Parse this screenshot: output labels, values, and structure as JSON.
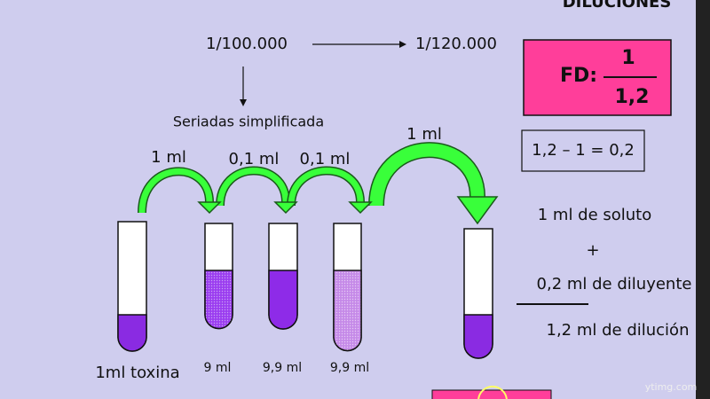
{
  "header": {
    "title": "DILUCIONES"
  },
  "flow": {
    "from": "1/100.000",
    "to": "1/120.000",
    "method": "Seriadas simplificada"
  },
  "fd": {
    "label": "FD:",
    "numerator": "1",
    "denominator": "1,2"
  },
  "transfers": [
    "1 ml",
    "0,1 ml",
    "0,1 ml",
    "1 ml"
  ],
  "tubes": [
    "1ml toxina",
    "9 ml",
    "9,9 ml",
    "9,9 ml"
  ],
  "equation": "1,2 – 1 = 0,2",
  "calculation": {
    "solute": "1 ml de  soluto",
    "plus": "+",
    "diluent": "0,2 ml de diluyente",
    "total": "1,2 ml de dilución"
  },
  "watermark": "ytimg.com"
}
